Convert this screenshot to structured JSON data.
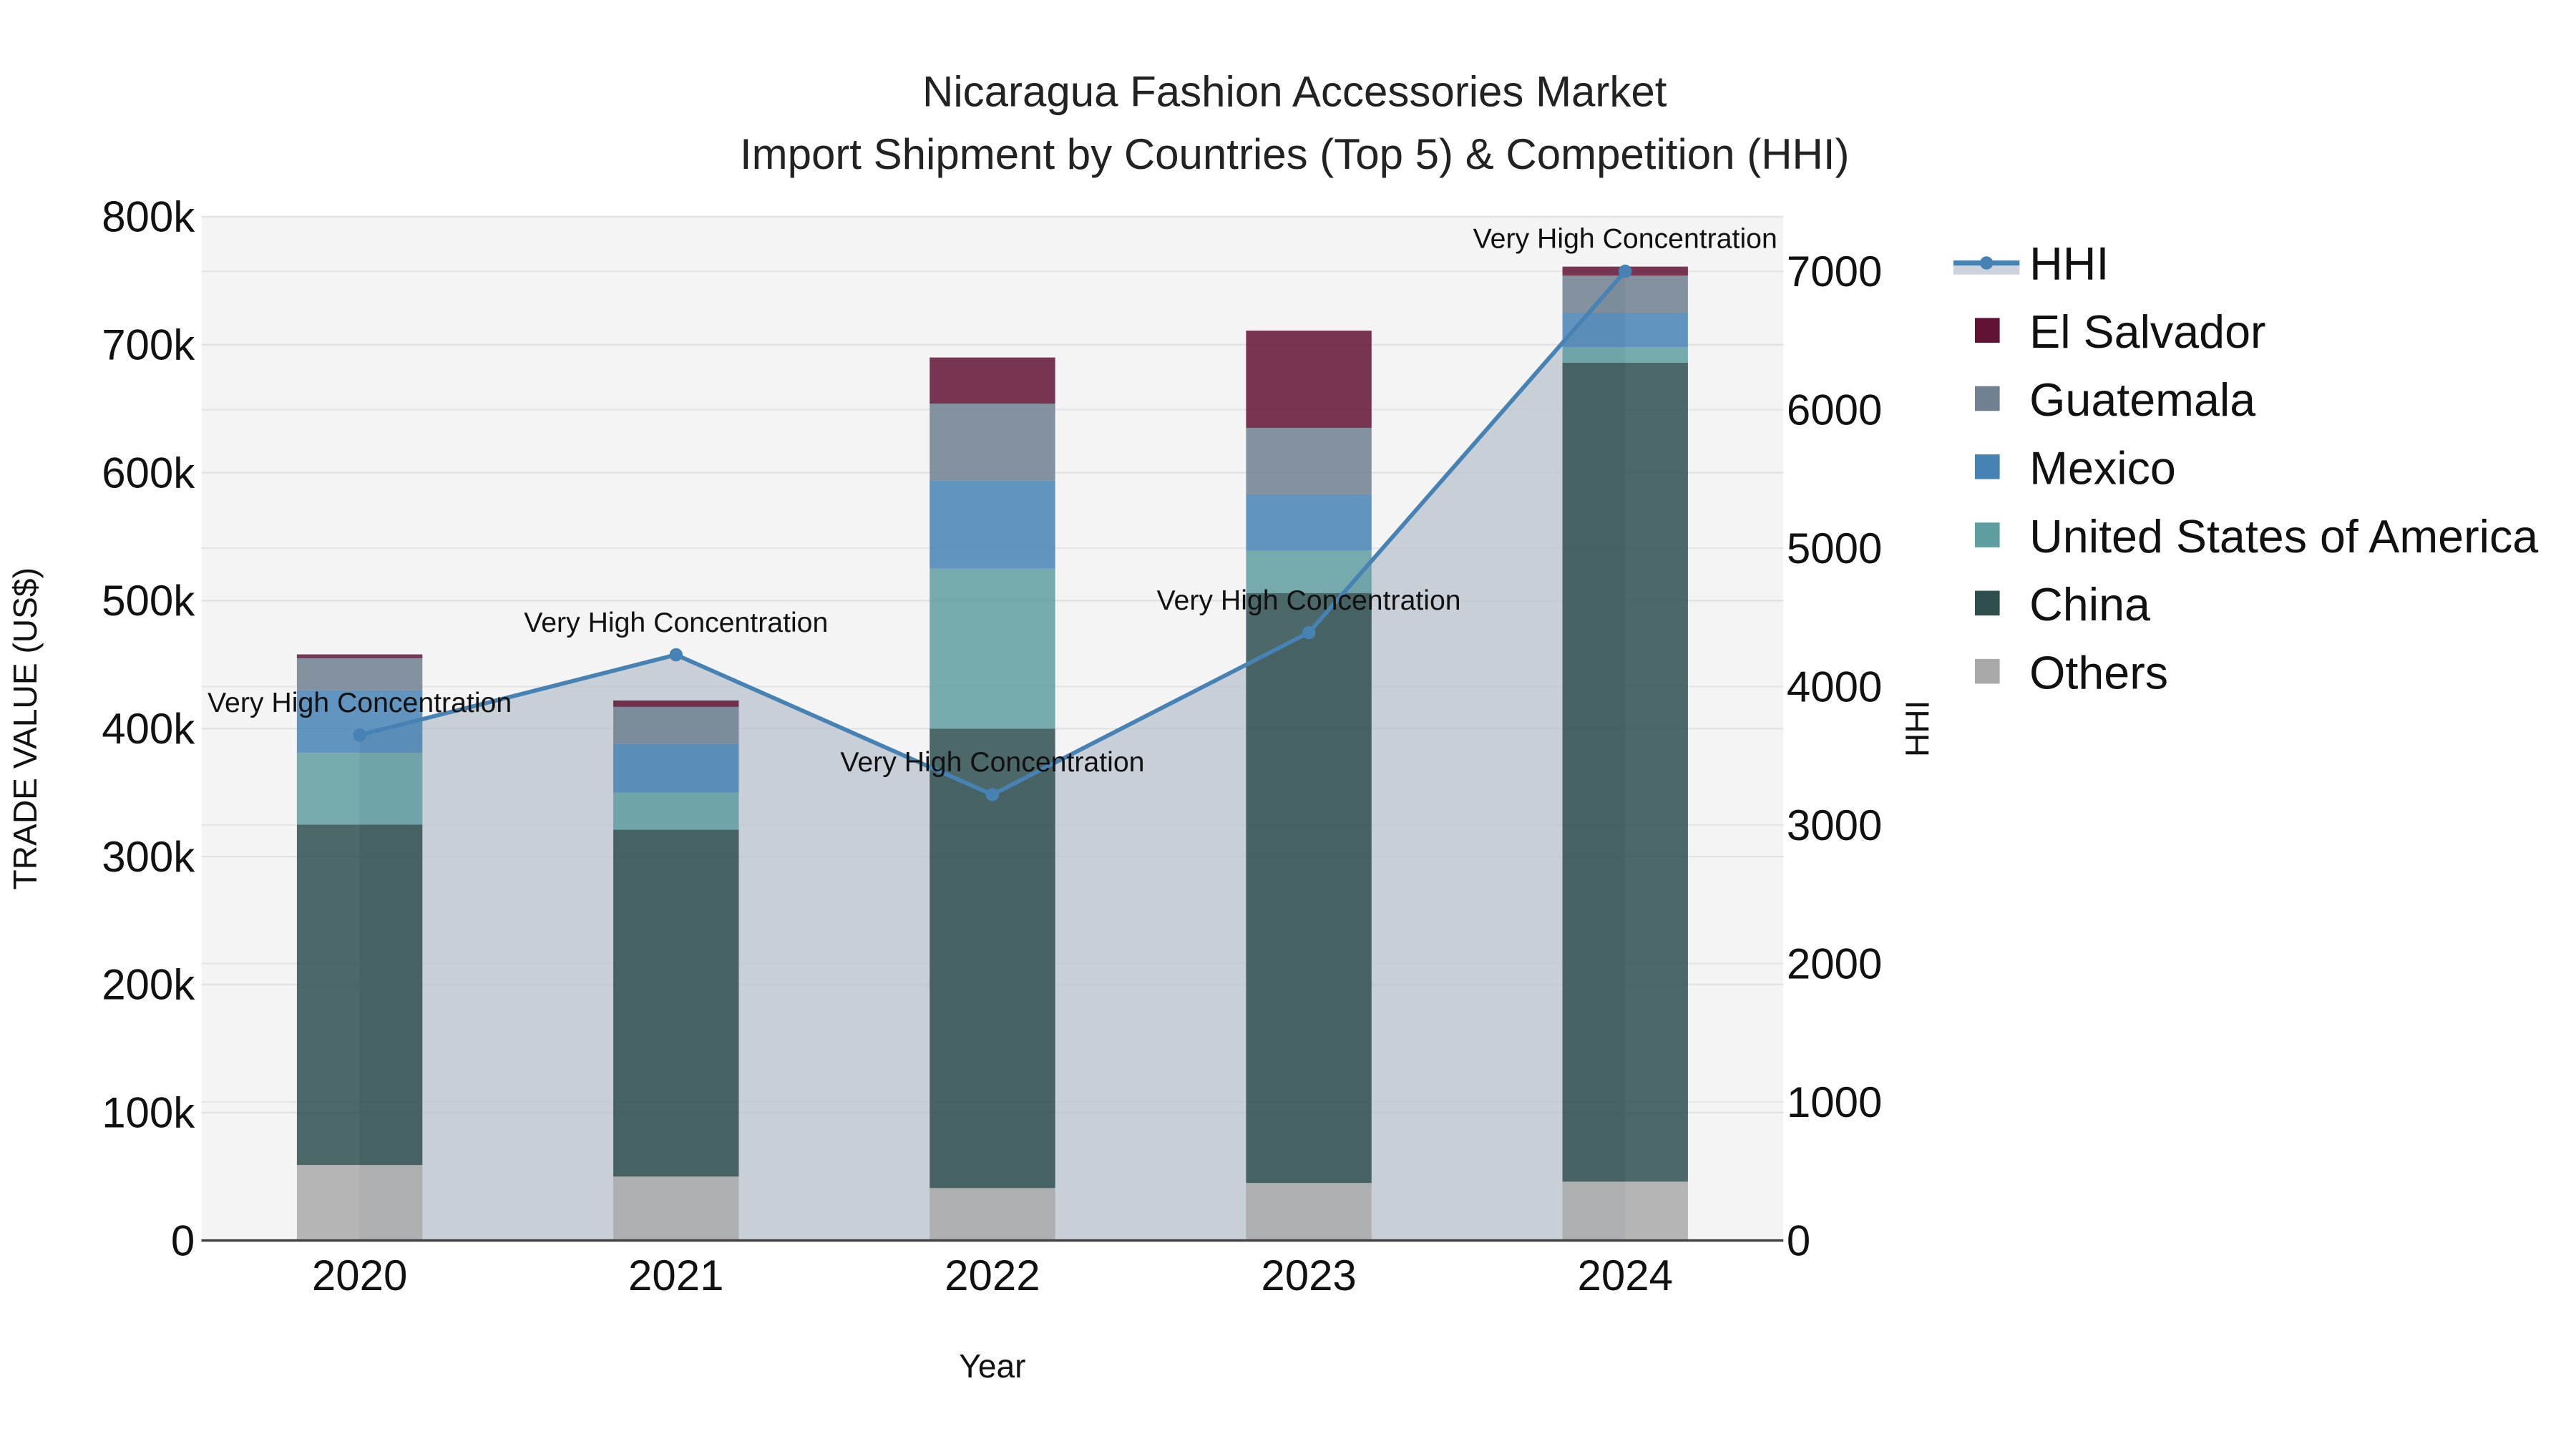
{
  "title": {
    "line1": "Nicaragua Fashion Accessories Market",
    "line2": "Import Shipment by Countries (Top 5) & Competition (HHI)"
  },
  "axes": {
    "x_label": "Year",
    "y_left_label": "TRADE VALUE (US$)",
    "y_right_label": "HHI",
    "y_left_ticks": [
      "0",
      "100k",
      "200k",
      "300k",
      "400k",
      "500k",
      "600k",
      "700k",
      "800k"
    ],
    "y_right_ticks": [
      "0",
      "1000",
      "2000",
      "3000",
      "4000",
      "5000",
      "6000",
      "7000"
    ],
    "x_ticks": [
      "2020",
      "2021",
      "2022",
      "2023",
      "2024"
    ]
  },
  "legend": {
    "items": [
      {
        "label": "HHI",
        "color": "#4682b4",
        "type": "line"
      },
      {
        "label": "El Salvador",
        "color": "#621335",
        "type": "bar"
      },
      {
        "label": "Guatemala",
        "color": "#708090",
        "type": "bar"
      },
      {
        "label": "Mexico",
        "color": "#4682b4",
        "type": "bar"
      },
      {
        "label": "United States of America",
        "color": "#5f9ea0",
        "type": "bar"
      },
      {
        "label": "China",
        "color": "#2f4f4f",
        "type": "bar"
      },
      {
        "label": "Others",
        "color": "#a9a9a9",
        "type": "bar"
      }
    ]
  },
  "annotations": [
    {
      "year": "2020",
      "text": "Very High Concentration"
    },
    {
      "year": "2021",
      "text": "Very High Concentration"
    },
    {
      "year": "2022",
      "text": "Very High Concentration"
    },
    {
      "year": "2023",
      "text": "Very High Concentration"
    },
    {
      "year": "2024",
      "text": "Very High Concentration"
    }
  ],
  "chart_data": {
    "type": "bar",
    "subtype": "stacked bar + line (secondary axis)",
    "title": "Nicaragua Fashion Accessories Market Import Shipment by Countries (Top 5) & Competition (HHI)",
    "xlabel": "Year",
    "ylabel": "TRADE VALUE (US$)",
    "y2label": "HHI",
    "categories": [
      "2020",
      "2021",
      "2022",
      "2023",
      "2024"
    ],
    "ylim": [
      0,
      800000
    ],
    "y2lim": [
      0,
      7400
    ],
    "grid": true,
    "legend_position": "right",
    "series": [
      {
        "name": "Others",
        "color": "#a9a9a9",
        "values": [
          59000,
          50000,
          41000,
          45000,
          46000
        ]
      },
      {
        "name": "China",
        "color": "#2f4f4f",
        "values": [
          266000,
          271000,
          359000,
          461000,
          640000
        ]
      },
      {
        "name": "United States of America",
        "color": "#5f9ea0",
        "values": [
          56000,
          29000,
          125000,
          33000,
          12000
        ]
      },
      {
        "name": "Mexico",
        "color": "#4682b4",
        "values": [
          49000,
          38000,
          69000,
          44000,
          27000
        ]
      },
      {
        "name": "Guatemala",
        "color": "#708090",
        "values": [
          25000,
          29000,
          60000,
          52000,
          29000
        ]
      },
      {
        "name": "El Salvador",
        "color": "#621335",
        "values": [
          3000,
          5000,
          36000,
          76000,
          7000
        ]
      }
    ],
    "line_series": {
      "name": "HHI",
      "axis": "right",
      "color": "#4682b4",
      "values": [
        3650,
        4230,
        3220,
        4390,
        7000
      ],
      "labels": [
        "Very High Concentration",
        "Very High Concentration",
        "Very High Concentration",
        "Very High Concentration",
        "Very High Concentration"
      ]
    },
    "totals": [
      458000,
      422000,
      690000,
      711000,
      761000
    ]
  }
}
